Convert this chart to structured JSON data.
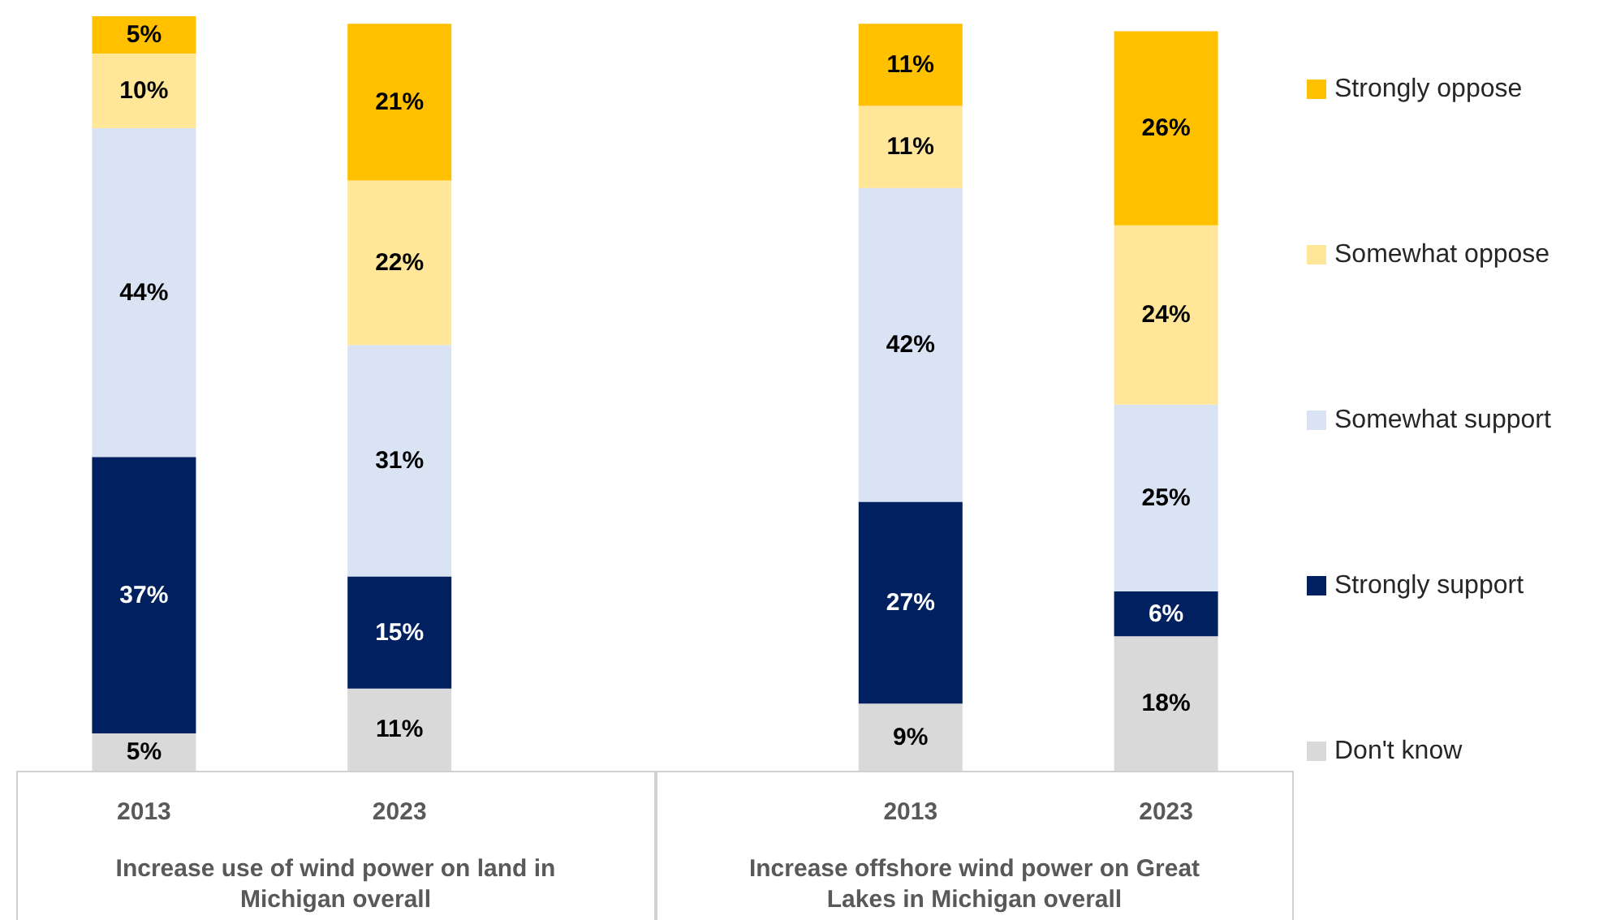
{
  "chart_data": {
    "type": "bar",
    "stacked": true,
    "legend": "right",
    "categories": [
      "2013",
      "2023",
      "2013",
      "2023"
    ],
    "annotations": [
      "Increase use of wind power on land in Michigan overall",
      "Increase offshore wind power on Great Lakes in Michigan overall"
    ],
    "series": [
      {
        "name": "Don't know",
        "color": "#d9d9d9",
        "values": [
          5,
          11,
          9,
          18
        ],
        "value_labels": [
          "5%",
          "11%",
          "9%",
          "18%"
        ]
      },
      {
        "name": "Strongly support",
        "color": "#002060",
        "values": [
          37,
          15,
          27,
          6
        ],
        "value_labels": [
          "37%",
          "15%",
          "27%",
          "6%"
        ]
      },
      {
        "name": "Somewhat support",
        "color": "#dae3f3",
        "values": [
          44,
          31,
          42,
          25
        ],
        "value_labels": [
          "44%",
          "31%",
          "42%",
          "25%"
        ]
      },
      {
        "name": "Somewhat oppose",
        "color": "#ffe699",
        "values": [
          10,
          22,
          11,
          24
        ],
        "value_labels": [
          "10%",
          "22%",
          "11%",
          "24%"
        ]
      },
      {
        "name": "Strongly oppose",
        "color": "#ffc000",
        "values": [
          5,
          21,
          11,
          26
        ],
        "value_labels": [
          "5%",
          "21%",
          "11%",
          "26%"
        ]
      }
    ]
  }
}
